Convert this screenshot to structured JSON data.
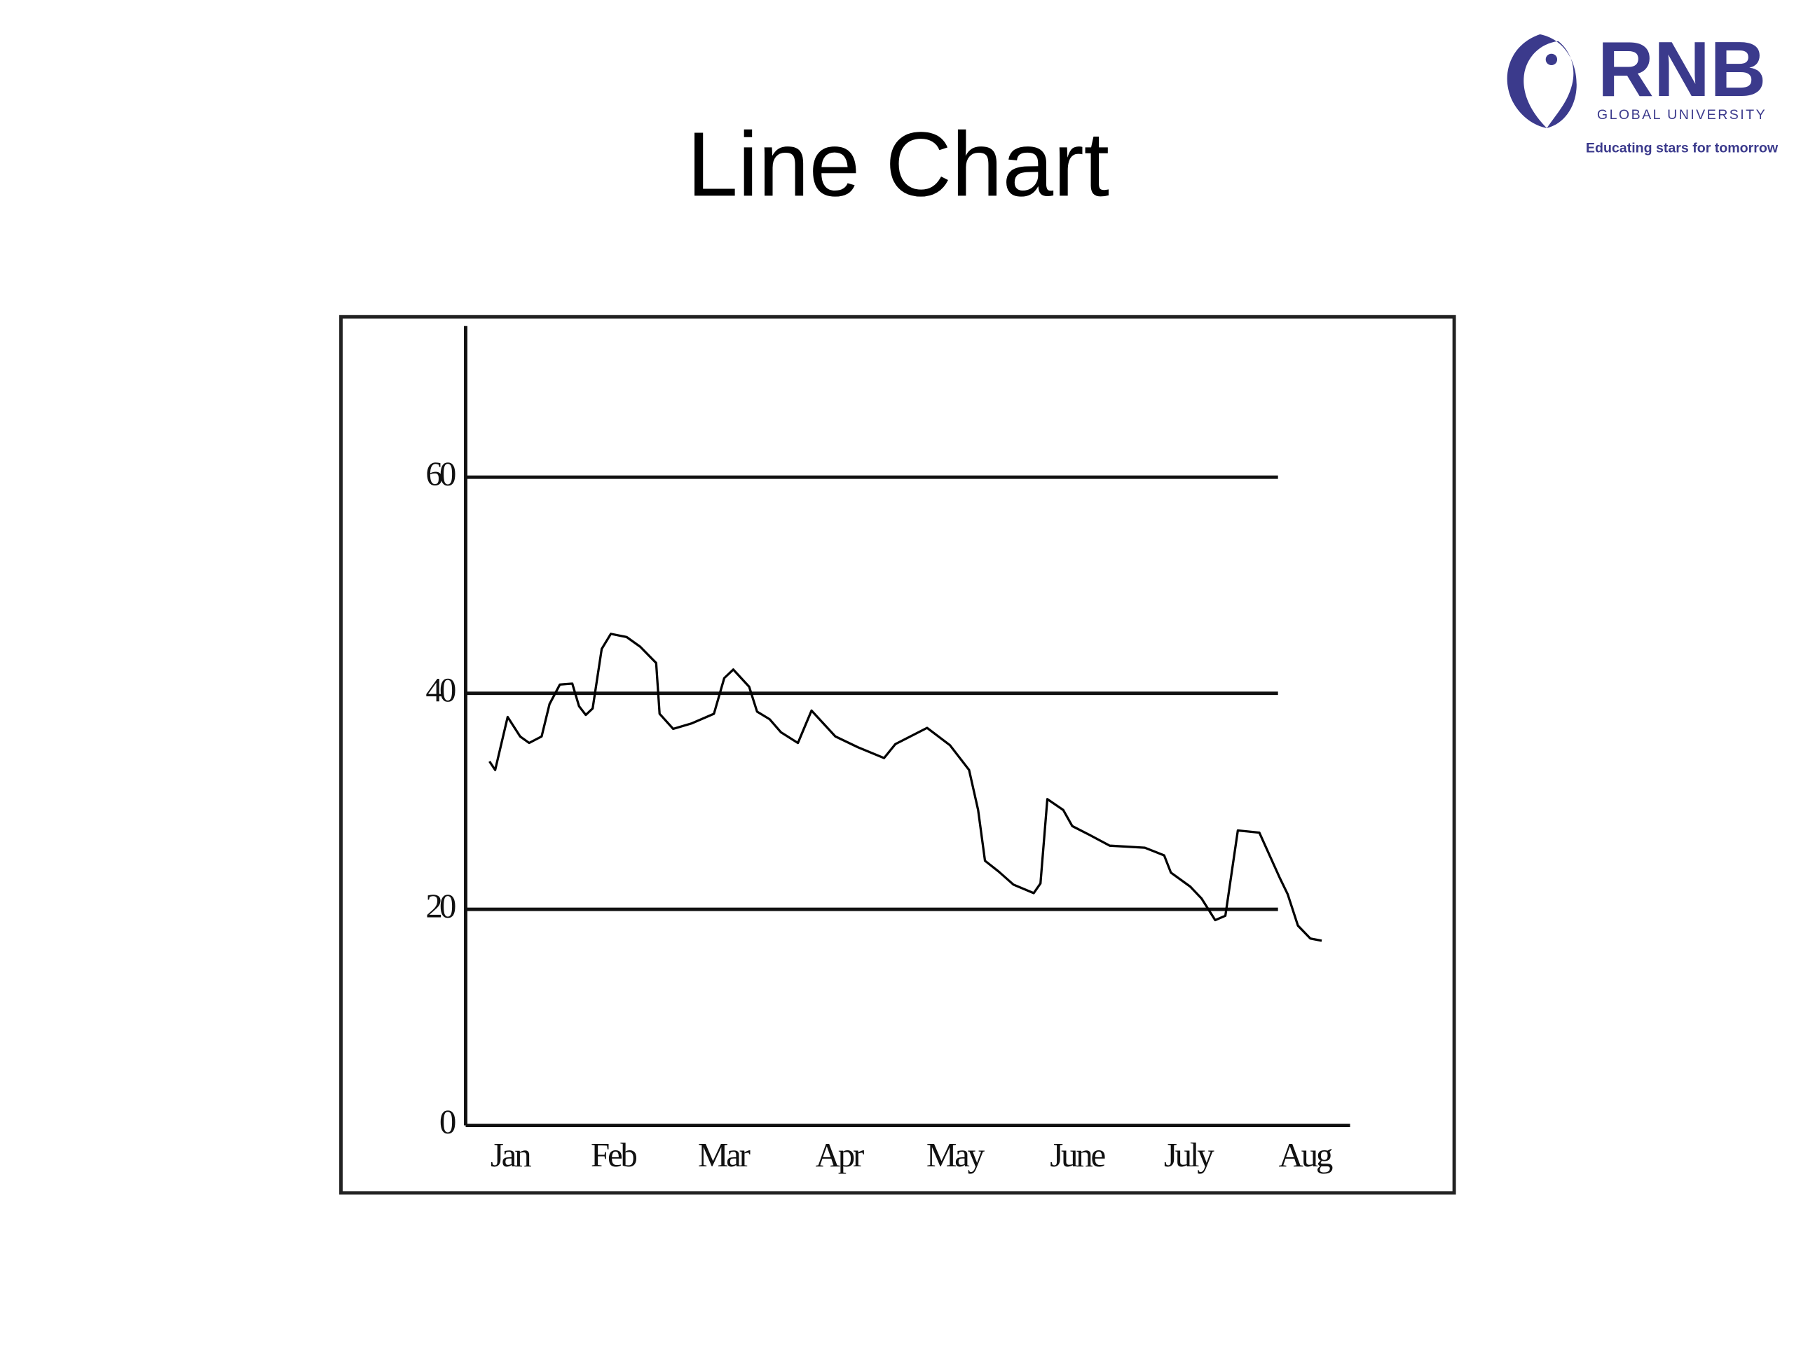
{
  "logo": {
    "name": "RNB",
    "subtitle": "GLOBAL UNIVERSITY",
    "tagline": "Educating stars for tomorrow"
  },
  "chart_data": {
    "type": "line",
    "title": "Line Chart",
    "color": "#000000",
    "grid": true,
    "x": [
      -0.18,
      -0.13,
      -0.02,
      0.09,
      0.17,
      0.28,
      0.35,
      0.44,
      0.55,
      0.61,
      0.67,
      0.73,
      0.81,
      0.89,
      1.03,
      1.15,
      1.29,
      1.32,
      1.44,
      1.6,
      1.8,
      1.89,
      1.97,
      2.11,
      2.18,
      2.29,
      2.39,
      2.54,
      2.66,
      2.87,
      3.07,
      3.3,
      3.4,
      3.68,
      3.88,
      4.05,
      4.13,
      4.19,
      4.31,
      4.44,
      4.62,
      4.68,
      4.74,
      4.88,
      4.96,
      5.11,
      5.29,
      5.6,
      5.77,
      5.83,
      6.0,
      6.1,
      6.22,
      6.31,
      6.42,
      6.61,
      6.79,
      6.86,
      6.95,
      7.06,
      7.16
    ],
    "values": [
      33.7,
      32.9,
      37.8,
      36.0,
      35.4,
      36.0,
      39.0,
      40.8,
      40.9,
      38.8,
      38.0,
      38.6,
      44.1,
      45.5,
      45.2,
      44.3,
      42.8,
      38.1,
      36.7,
      37.2,
      38.1,
      41.4,
      42.2,
      40.6,
      38.3,
      37.6,
      36.4,
      35.4,
      38.4,
      36.0,
      35.0,
      34.0,
      35.3,
      36.8,
      35.2,
      32.9,
      29.2,
      24.5,
      23.5,
      22.3,
      21.5,
      22.4,
      30.2,
      29.2,
      27.7,
      26.9,
      25.9,
      25.7,
      25.0,
      23.4,
      22.1,
      21.0,
      19.0,
      19.4,
      27.3,
      27.1,
      22.9,
      21.4,
      18.5,
      17.3,
      17.1
    ],
    "xlim": [
      -0.39,
      7.41
    ],
    "xticks": [
      {
        "value": 0,
        "label": "Jan"
      },
      {
        "value": 0.91,
        "label": "Feb"
      },
      {
        "value": 1.88,
        "label": "Mar"
      },
      {
        "value": 2.9,
        "label": "Apr"
      },
      {
        "value": 3.92,
        "label": "May"
      },
      {
        "value": 5.0,
        "label": "June"
      },
      {
        "value": 5.98,
        "label": "July"
      },
      {
        "value": 7.01,
        "label": "Aug"
      }
    ],
    "ylim": [
      0,
      74
    ],
    "yticks": [
      0,
      20,
      40,
      60
    ]
  }
}
